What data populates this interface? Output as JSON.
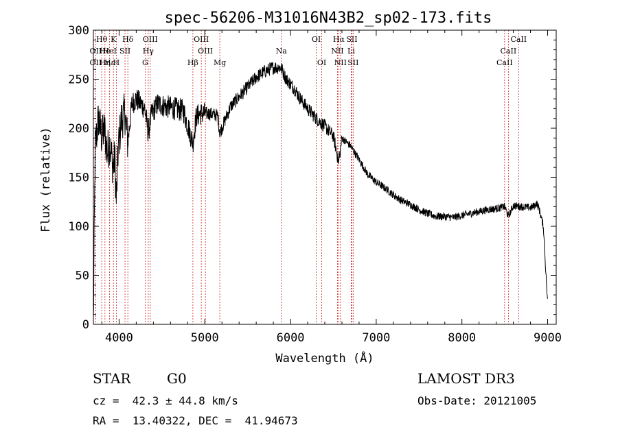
{
  "chart_data": {
    "type": "line",
    "title": "spec-56206-M31016N43B2_sp02-173.fits",
    "xlabel": "Wavelength (Å)",
    "ylabel": "Flux (relative)",
    "xlim": [
      3700,
      9100
    ],
    "ylim": [
      0,
      300
    ],
    "xticks": [
      4000,
      5000,
      6000,
      7000,
      8000,
      9000
    ],
    "yticks": [
      0,
      50,
      100,
      150,
      200,
      250,
      300
    ],
    "grid": false,
    "line_color": "#000000",
    "marker_color": "#cc2222",
    "spectrum_anchors": {
      "x": [
        3700,
        3720,
        3760,
        3800,
        3830,
        3860,
        3890,
        3930,
        3950,
        3968,
        3990,
        4030,
        4070,
        4101,
        4150,
        4200,
        4250,
        4300,
        4340,
        4380,
        4450,
        4550,
        4650,
        4750,
        4861,
        4900,
        4950,
        5050,
        5150,
        5175,
        5300,
        5400,
        5500,
        5600,
        5700,
        5800,
        5890,
        5950,
        6000,
        6050,
        6100,
        6200,
        6300,
        6400,
        6500,
        6563,
        6600,
        6700,
        6800,
        6900,
        7000,
        7100,
        7200,
        7300,
        7400,
        7500,
        7600,
        7700,
        7800,
        7900,
        8000,
        8100,
        8200,
        8300,
        8400,
        8500,
        8542,
        8600,
        8700,
        8800,
        8850,
        8870,
        8900,
        8950,
        9000
      ],
      "y": [
        0,
        180,
        210,
        190,
        200,
        175,
        185,
        160,
        170,
        125,
        180,
        210,
        215,
        185,
        225,
        230,
        225,
        220,
        195,
        215,
        225,
        222,
        220,
        218,
        185,
        212,
        215,
        215,
        213,
        195,
        222,
        232,
        242,
        252,
        258,
        262,
        262,
        250,
        245,
        240,
        232,
        220,
        210,
        202,
        192,
        165,
        190,
        182,
        168,
        153,
        145,
        139,
        132,
        126,
        122,
        117,
        113,
        110,
        110,
        109,
        111,
        113,
        115,
        117,
        118,
        120,
        110,
        121,
        120,
        119,
        121,
        124,
        118,
        100,
        20
      ]
    },
    "lines": [
      {
        "label": "Hθ",
        "x": 3797,
        "row": 1
      },
      {
        "label": "OII",
        "x": 3727,
        "row": 2
      },
      {
        "label": "OII",
        "x": 3727,
        "row": 3
      },
      {
        "label": "He",
        "x": 3835,
        "row": 2
      },
      {
        "label": "Hη",
        "x": 3835,
        "row": 3
      },
      {
        "label": "Hε",
        "x": 3889,
        "row": 3
      },
      {
        "label": "K",
        "x": 3934,
        "row": 1
      },
      {
        "label": "HeI",
        "x": 3889,
        "row": 2
      },
      {
        "label": "SII",
        "x": 4069,
        "row": 2
      },
      {
        "label": "H",
        "x": 3968,
        "row": 3
      },
      {
        "label": "Hδ",
        "x": 4102,
        "row": 1
      },
      {
        "label": "OIII",
        "x": 4363,
        "row": 1
      },
      {
        "label": "Hγ",
        "x": 4340,
        "row": 2
      },
      {
        "label": "G",
        "x": 4304,
        "row": 3
      },
      {
        "label": "OIII",
        "x": 4959,
        "row": 1
      },
      {
        "label": "OIII",
        "x": 5007,
        "row": 2
      },
      {
        "label": "Hβ",
        "x": 4861,
        "row": 3
      },
      {
        "label": "Mg",
        "x": 5175,
        "row": 3
      },
      {
        "label": "Na",
        "x": 5893,
        "row": 2
      },
      {
        "label": "OI",
        "x": 6300,
        "row": 1
      },
      {
        "label": "OI",
        "x": 6364,
        "row": 3
      },
      {
        "label": "Hα",
        "x": 6563,
        "row": 1
      },
      {
        "label": "SII",
        "x": 6716,
        "row": 1
      },
      {
        "label": "NII",
        "x": 6548,
        "row": 2
      },
      {
        "label": "Li",
        "x": 6708,
        "row": 2
      },
      {
        "label": "NII",
        "x": 6583,
        "row": 3
      },
      {
        "label": "SII",
        "x": 6731,
        "row": 3
      },
      {
        "label": "CaII",
        "x": 8662,
        "row": 1
      },
      {
        "label": "CaII",
        "x": 8542,
        "row": 2
      },
      {
        "label": "CaII",
        "x": 8498,
        "row": 3
      }
    ]
  },
  "info": {
    "object_class": "STAR",
    "subclass": "G0",
    "redshift": "cz =  42.3 ± 44.8 km/s",
    "coords": "RA =  13.40322, DEC =  41.94673",
    "survey": "LAMOST DR3",
    "obs_date": "Obs-Date: 20121005"
  }
}
